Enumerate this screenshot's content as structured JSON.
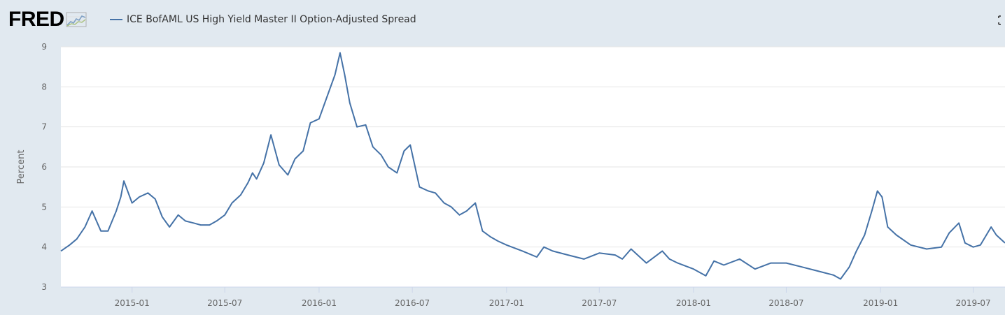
{
  "header": {
    "logo_text": "FRED",
    "fullscreen_icon": "fullscreen-icon"
  },
  "legend": {
    "label": "ICE BofAML US High Yield Master II Option-Adjusted Spread",
    "color": "#4572a7"
  },
  "colors": {
    "background": "#e1e9f0",
    "plot_background": "#ffffff",
    "line": "#4572a7",
    "grid": "#e6e6e6"
  },
  "chart_data": {
    "type": "line",
    "title": "",
    "ylabel": "Percent",
    "xlabel": "",
    "ylim": [
      3,
      9
    ],
    "xlim": [
      "2014-08-15",
      "2019-09-01"
    ],
    "grid": true,
    "legend_position": "top-left",
    "yticks": [
      "3",
      "4",
      "5",
      "6",
      "7",
      "8",
      "9"
    ],
    "xticks": [
      "2015-01",
      "2015-07",
      "2016-01",
      "2016-07",
      "2017-01",
      "2017-07",
      "2018-01",
      "2018-07",
      "2019-01",
      "2019-07"
    ],
    "series": [
      {
        "name": "ICE BofAML US High Yield Master II Option-Adjusted Spread",
        "x": [
          "2014-08-15",
          "2014-09-01",
          "2014-09-15",
          "2014-10-01",
          "2014-10-15",
          "2014-11-01",
          "2014-11-15",
          "2014-12-01",
          "2014-12-10",
          "2014-12-16",
          "2015-01-01",
          "2015-01-15",
          "2015-02-01",
          "2015-02-15",
          "2015-03-01",
          "2015-03-15",
          "2015-04-01",
          "2015-04-15",
          "2015-05-01",
          "2015-05-15",
          "2015-06-01",
          "2015-06-15",
          "2015-07-01",
          "2015-07-15",
          "2015-08-01",
          "2015-08-15",
          "2015-08-24",
          "2015-09-01",
          "2015-09-15",
          "2015-09-29",
          "2015-10-15",
          "2015-11-01",
          "2015-11-15",
          "2015-12-01",
          "2015-12-15",
          "2016-01-01",
          "2016-01-15",
          "2016-02-01",
          "2016-02-11",
          "2016-02-20",
          "2016-03-01",
          "2016-03-15",
          "2016-04-01",
          "2016-04-15",
          "2016-05-01",
          "2016-05-15",
          "2016-06-01",
          "2016-06-15",
          "2016-06-27",
          "2016-07-15",
          "2016-08-01",
          "2016-08-15",
          "2016-09-01",
          "2016-09-15",
          "2016-10-01",
          "2016-10-15",
          "2016-11-01",
          "2016-11-15",
          "2016-12-01",
          "2016-12-15",
          "2017-01-01",
          "2017-02-01",
          "2017-03-01",
          "2017-03-15",
          "2017-04-01",
          "2017-05-01",
          "2017-06-01",
          "2017-07-01",
          "2017-08-01",
          "2017-08-15",
          "2017-09-01",
          "2017-10-01",
          "2017-11-01",
          "2017-11-15",
          "2017-12-01",
          "2018-01-01",
          "2018-01-25",
          "2018-02-10",
          "2018-03-01",
          "2018-04-01",
          "2018-05-01",
          "2018-06-01",
          "2018-07-01",
          "2018-08-01",
          "2018-09-01",
          "2018-10-01",
          "2018-10-15",
          "2018-11-01",
          "2018-11-15",
          "2018-12-01",
          "2018-12-15",
          "2018-12-26",
          "2019-01-04",
          "2019-01-15",
          "2019-02-01",
          "2019-03-01",
          "2019-04-01",
          "2019-04-30",
          "2019-05-15",
          "2019-06-03",
          "2019-06-15",
          "2019-07-01",
          "2019-07-15",
          "2019-08-05",
          "2019-08-15",
          "2019-09-01"
        ],
        "values": [
          3.9,
          4.05,
          4.2,
          4.5,
          4.9,
          4.4,
          4.4,
          4.9,
          5.25,
          5.65,
          5.1,
          5.25,
          5.35,
          5.2,
          4.75,
          4.5,
          4.8,
          4.65,
          4.6,
          4.55,
          4.55,
          4.65,
          4.8,
          5.1,
          5.3,
          5.6,
          5.85,
          5.7,
          6.1,
          6.8,
          6.05,
          5.8,
          6.2,
          6.4,
          7.1,
          7.2,
          7.7,
          8.3,
          8.85,
          8.3,
          7.6,
          7.0,
          7.05,
          6.5,
          6.3,
          6.0,
          5.85,
          6.4,
          6.55,
          5.5,
          5.4,
          5.35,
          5.1,
          5.0,
          4.8,
          4.9,
          5.1,
          4.4,
          4.25,
          4.15,
          4.05,
          3.9,
          3.75,
          4.0,
          3.9,
          3.8,
          3.7,
          3.85,
          3.8,
          3.7,
          3.95,
          3.6,
          3.9,
          3.7,
          3.6,
          3.45,
          3.28,
          3.65,
          3.55,
          3.7,
          3.45,
          3.6,
          3.6,
          3.5,
          3.4,
          3.3,
          3.2,
          3.5,
          3.9,
          4.3,
          4.9,
          5.4,
          5.25,
          4.5,
          4.3,
          4.05,
          3.95,
          4.0,
          4.35,
          4.6,
          4.1,
          4.0,
          4.05,
          4.5,
          4.3,
          4.1
        ]
      }
    ]
  }
}
